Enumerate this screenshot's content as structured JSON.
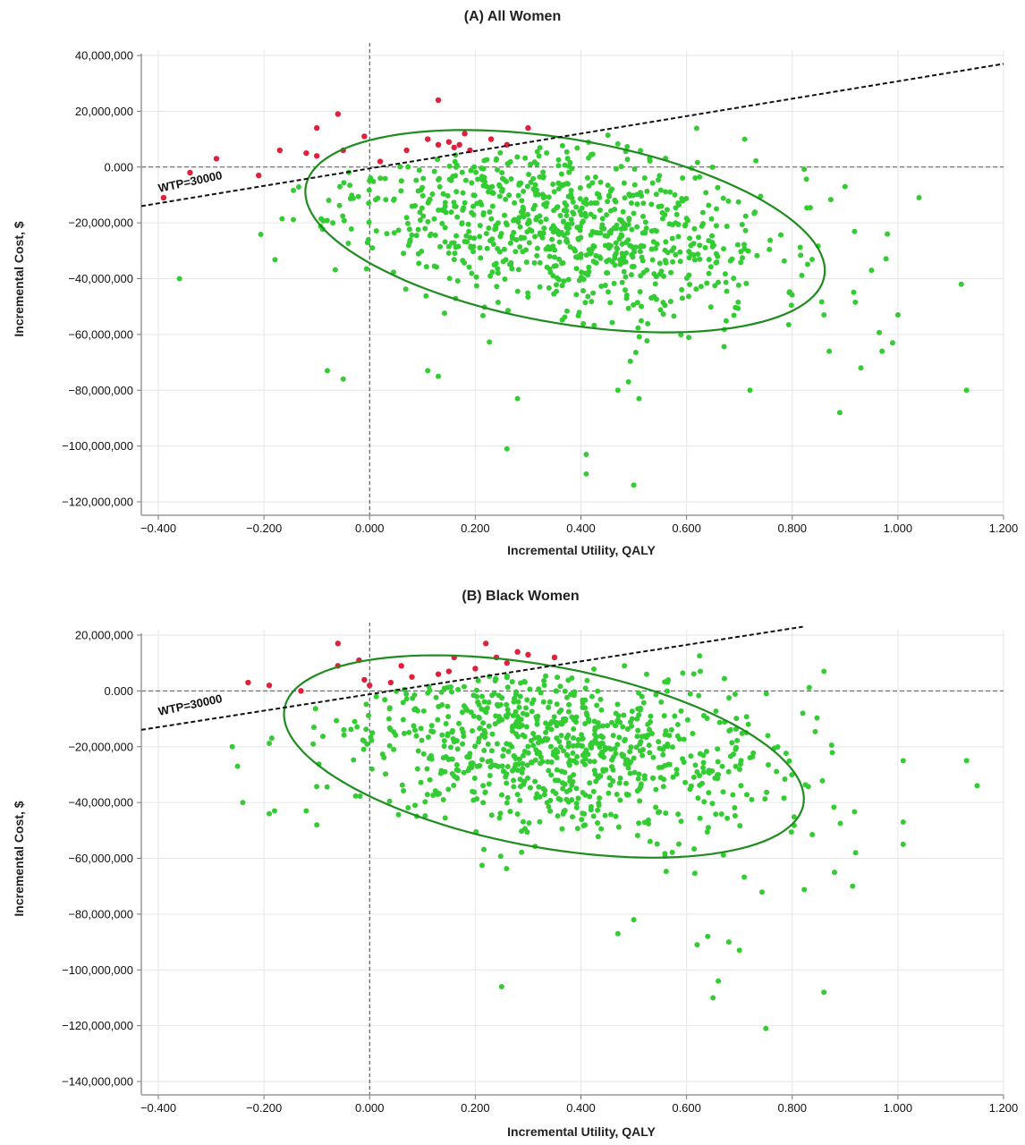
{
  "chart_data": [
    {
      "type": "scatter",
      "title": "(A) All Women",
      "xlabel": "Incremental Utility, QALY",
      "ylabel": "Incremental Cost, $",
      "xlim": [
        -0.4,
        1.2
      ],
      "ylim": [
        -120000000,
        40000000
      ],
      "x_ticks": [
        -0.4,
        -0.2,
        0.0,
        0.2,
        0.4,
        0.6,
        0.8,
        1.0,
        1.2
      ],
      "x_tick_labels": [
        "−0.400",
        "−0.200",
        "0.000",
        "0.200",
        "0.400",
        "0.600",
        "0.800",
        "1.000",
        "1.200"
      ],
      "y_ticks": [
        40000000,
        20000000,
        0,
        -20000000,
        -40000000,
        -60000000,
        -80000000,
        -100000000,
        -120000000
      ],
      "y_tick_labels": [
        "40,000,000",
        "20,000,000",
        "0.000",
        "−20,000,000",
        "−40,000,000",
        "−60,000,000",
        "−80,000,000",
        "−100,000,000",
        "−120,000,000"
      ],
      "grid": true,
      "wtp_label": "WTP=30000",
      "wtp_line": {
        "x": [
          -0.4,
          1.2
        ],
        "y": [
          -13000000,
          37000000
        ]
      },
      "ellipse": {
        "center": [
          0.37,
          -23000000
        ],
        "x_semi_axis": 0.56,
        "y_semi_axis": 37500000,
        "tilt": 0.5
      },
      "cloud": {
        "n": 900,
        "mean": [
          0.36,
          -20000000
        ],
        "sd": [
          0.2,
          16000000
        ],
        "corr": -0.3,
        "seed": 11
      },
      "colors": {
        "below_wtp": "#33cc33",
        "above_wtp": "#e0203c",
        "ellipse": "#1e8c1e",
        "wtp_line": "#111111"
      },
      "outliers": [
        [
          -0.36,
          -40000000
        ],
        [
          -0.08,
          -73000000
        ],
        [
          -0.05,
          -76000000
        ],
        [
          0.11,
          -73000000
        ],
        [
          0.13,
          -75000000
        ],
        [
          0.26,
          -101000000
        ],
        [
          0.28,
          -83000000
        ],
        [
          0.41,
          -103000000
        ],
        [
          0.41,
          -110000000
        ],
        [
          0.47,
          -80000000
        ],
        [
          0.49,
          -77000000
        ],
        [
          0.5,
          -114000000
        ],
        [
          0.51,
          -83000000
        ],
        [
          0.89,
          -88000000
        ],
        [
          1.13,
          -80000000
        ],
        [
          1.12,
          -42000000
        ],
        [
          1.04,
          -11000000
        ],
        [
          0.9,
          -7000000
        ],
        [
          0.95,
          -37000000
        ],
        [
          0.98,
          -24000000
        ],
        [
          1.0,
          -53000000
        ],
        [
          0.99,
          -63000000
        ],
        [
          0.97,
          -66000000
        ],
        [
          0.93,
          -72000000
        ],
        [
          0.87,
          -66000000
        ],
        [
          0.86,
          -53000000
        ],
        [
          0.72,
          -80000000
        ],
        [
          0.71,
          10000000
        ]
      ],
      "above_wtp_points": [
        [
          -0.39,
          -11000000
        ],
        [
          -0.34,
          -2000000
        ],
        [
          -0.29,
          3000000
        ],
        [
          -0.21,
          -3000000
        ],
        [
          -0.17,
          6000000
        ],
        [
          -0.12,
          5000000
        ],
        [
          -0.1,
          14000000
        ],
        [
          -0.1,
          4000000
        ],
        [
          -0.06,
          19000000
        ],
        [
          -0.05,
          6000000
        ],
        [
          -0.01,
          11000000
        ],
        [
          0.02,
          2000000
        ],
        [
          0.07,
          6000000
        ],
        [
          0.11,
          10000000
        ],
        [
          0.13,
          8000000
        ],
        [
          0.13,
          24000000
        ],
        [
          0.15,
          9000000
        ],
        [
          0.16,
          7000000
        ],
        [
          0.17,
          8000000
        ],
        [
          0.18,
          12000000
        ],
        [
          0.19,
          6000000
        ],
        [
          0.23,
          10000000
        ],
        [
          0.26,
          8000000
        ],
        [
          0.3,
          14000000
        ]
      ]
    },
    {
      "type": "scatter",
      "title": "(B) Black Women",
      "xlabel": "Incremental Utility, QALY",
      "ylabel": "Incremental Cost, $",
      "xlim": [
        -0.4,
        1.2
      ],
      "ylim": [
        -140000000,
        20000000
      ],
      "x_ticks": [
        -0.4,
        -0.2,
        0.0,
        0.2,
        0.4,
        0.6,
        0.8,
        1.0,
        1.2
      ],
      "x_tick_labels": [
        "−0.400",
        "−0.200",
        "0.000",
        "0.200",
        "0.400",
        "0.600",
        "0.800",
        "1.000",
        "1.200"
      ],
      "y_ticks": [
        20000000,
        0,
        -20000000,
        -40000000,
        -60000000,
        -80000000,
        -100000000,
        -120000000,
        -140000000
      ],
      "y_tick_labels": [
        "20,000,000",
        "0.000",
        "−20,000,000",
        "−40,000,000",
        "−60,000,000",
        "−80,000,000",
        "−100,000,000",
        "−120,000,000",
        "−140,000,000"
      ],
      "grid": true,
      "wtp_label": "WTP=30000",
      "wtp_line": {
        "x": [
          -0.4,
          0.82
        ],
        "y": [
          -13000000,
          23000000
        ]
      },
      "ellipse": {
        "center": [
          0.33,
          -23500000
        ],
        "x_semi_axis": 0.57,
        "y_semi_axis": 37500000,
        "tilt": 0.53
      },
      "cloud": {
        "n": 900,
        "mean": [
          0.35,
          -20000000
        ],
        "sd": [
          0.2,
          16000000
        ],
        "corr": -0.3,
        "seed": 29
      },
      "colors": {
        "below_wtp": "#33cc33",
        "above_wtp": "#e0203c",
        "ellipse": "#1e8c1e",
        "wtp_line": "#111111"
      },
      "outliers": [
        [
          0.25,
          -106000000
        ],
        [
          0.65,
          -110000000
        ],
        [
          0.66,
          -104000000
        ],
        [
          0.75,
          -121000000
        ],
        [
          0.86,
          -108000000
        ],
        [
          0.7,
          -93000000
        ],
        [
          0.62,
          -91000000
        ],
        [
          0.68,
          -90000000
        ],
        [
          0.47,
          -87000000
        ],
        [
          0.5,
          -82000000
        ],
        [
          0.64,
          -88000000
        ],
        [
          1.13,
          -25000000
        ],
        [
          1.15,
          -34000000
        ],
        [
          1.01,
          -25000000
        ],
        [
          1.01,
          -47000000
        ],
        [
          1.01,
          -55000000
        ],
        [
          0.92,
          -58000000
        ],
        [
          0.88,
          -65000000
        ],
        [
          0.82,
          -8000000
        ],
        [
          0.86,
          7000000
        ],
        [
          -0.26,
          -20000000
        ],
        [
          -0.25,
          -27000000
        ],
        [
          -0.24,
          -40000000
        ],
        [
          -0.19,
          -44000000
        ],
        [
          -0.18,
          -43000000
        ],
        [
          -0.12,
          -43000000
        ],
        [
          -0.1,
          -48000000
        ]
      ],
      "above_wtp_points": [
        [
          -0.23,
          3000000
        ],
        [
          -0.19,
          2000000
        ],
        [
          -0.13,
          0
        ],
        [
          -0.06,
          17000000
        ],
        [
          -0.06,
          9000000
        ],
        [
          -0.02,
          11000000
        ],
        [
          -0.01,
          4000000
        ],
        [
          0.0,
          2000000
        ],
        [
          0.04,
          3000000
        ],
        [
          0.06,
          9000000
        ],
        [
          0.08,
          5000000
        ],
        [
          0.13,
          6000000
        ],
        [
          0.15,
          7000000
        ],
        [
          0.16,
          12000000
        ],
        [
          0.2,
          8000000
        ],
        [
          0.22,
          17000000
        ],
        [
          0.24,
          12000000
        ],
        [
          0.26,
          10000000
        ],
        [
          0.28,
          14000000
        ],
        [
          0.3,
          13000000
        ],
        [
          0.35,
          12000000
        ]
      ]
    }
  ]
}
